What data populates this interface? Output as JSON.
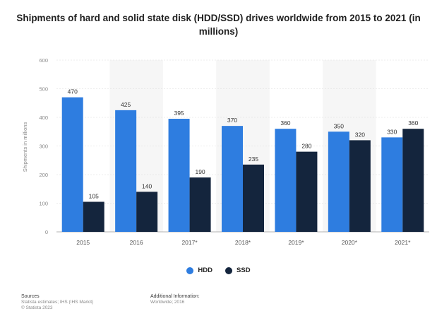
{
  "chart_data": {
    "type": "bar",
    "title": "Shipments of hard and solid state disk (HDD/SSD) drives worldwide from 2015 to 2021 (in millions)",
    "xlabel": "",
    "ylabel": "Shipments in millions",
    "ylim": [
      0,
      600
    ],
    "yticks": [
      "0",
      "100",
      "200",
      "300",
      "400",
      "500",
      "600"
    ],
    "categories": [
      "2015",
      "2016",
      "2017*",
      "2018*",
      "2019*",
      "2020*",
      "2021*"
    ],
    "series": [
      {
        "name": "HDD",
        "color": "#2e7de0",
        "values": [
          470,
          425,
          395,
          370,
          360,
          350,
          330
        ]
      },
      {
        "name": "SSD",
        "color": "#14253d",
        "values": [
          105,
          140,
          190,
          235,
          280,
          320,
          360
        ]
      }
    ],
    "grid": true,
    "legend": "bottom-center"
  },
  "footer": {
    "sources_heading": "Sources",
    "sources_line1": "Statista estimates; IHS (IHS Markit)",
    "sources_line2": "© Statista 2023",
    "additional_heading": "Additional Information:",
    "additional_line1": "Worldwide; 2016"
  }
}
